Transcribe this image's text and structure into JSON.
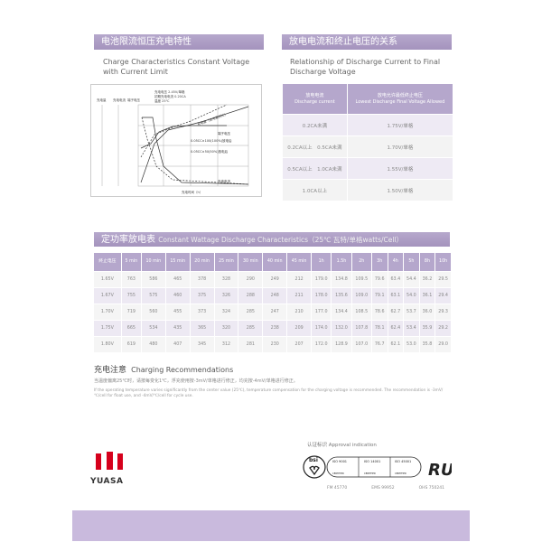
{
  "charge": {
    "title_cn": "电池限流恒压充电特性",
    "title_en": "Charge Characteristics Constant Voltage with Current Limit",
    "chart_labels": {
      "y_axes": [
        "充电量",
        "充电电流",
        "端子电压"
      ],
      "notes": [
        "充电电压 2.45V/单格",
        "初期充电电流 0.20CA",
        "温度 25℃"
      ],
      "curve_charge": "充电量（放电量的比）",
      "curve_voltage": "端子电压",
      "legend1": "0.05CC×100(100%)放电后",
      "legend2": "0.05CC×50(50%)放电后",
      "curve_current": "充电电流",
      "xlabel": "充电时间（h）"
    }
  },
  "relation": {
    "title_cn": "放电电流和终止电压的关系",
    "title_en": "Relationship of Discharge Current to Final Discharge Voltage",
    "headers": [
      {
        "cn": "放电电流",
        "en": "Discharge current"
      },
      {
        "cn": "放电允许最低终止电压",
        "en": "Lowest Discharge Final Voltage Allowed"
      }
    ],
    "rows": [
      [
        "0.2CA未满",
        "1.75V/单格"
      ],
      [
        "0.2CA以上　0.5CA未满",
        "1.70V/单格"
      ],
      [
        "0.5CA以上　1.0CA未满",
        "1.55V/单格"
      ],
      [
        "1.0CA以上",
        "1.50V/单格"
      ]
    ]
  },
  "wattage": {
    "title_cn": "定功率放电表",
    "title_en": "Constant Wattage Discharge Characteristics（25℃ 瓦特/单格watts/Cell）",
    "headers": [
      "终止电压",
      "5 min",
      "10 min",
      "15 min",
      "20 min",
      "25 min",
      "30 min",
      "40 min",
      "45 min",
      "1h",
      "1.5h",
      "2h",
      "3h",
      "4h",
      "5h",
      "8h",
      "10h"
    ],
    "rows": [
      [
        "1.65V",
        "763",
        "586",
        "465",
        "378",
        "328",
        "290",
        "249",
        "212",
        "179.0",
        "134.8",
        "109.5",
        "79.6",
        "63.4",
        "54.4",
        "36.2",
        "29.5"
      ],
      [
        "1.67V",
        "755",
        "575",
        "460",
        "375",
        "326",
        "288",
        "248",
        "211",
        "178.0",
        "135.6",
        "109.0",
        "79.1",
        "63.1",
        "54.0",
        "36.1",
        "29.4"
      ],
      [
        "1.70V",
        "719",
        "560",
        "455",
        "373",
        "324",
        "285",
        "247",
        "210",
        "177.0",
        "134.4",
        "108.5",
        "78.6",
        "62.7",
        "53.7",
        "36.0",
        "29.3"
      ],
      [
        "1.75V",
        "665",
        "534",
        "435",
        "365",
        "320",
        "285",
        "238",
        "209",
        "174.0",
        "132.0",
        "107.8",
        "78.1",
        "62.4",
        "53.4",
        "35.9",
        "29.2"
      ],
      [
        "1.80V",
        "619",
        "480",
        "407",
        "345",
        "312",
        "281",
        "230",
        "207",
        "172.0",
        "128.9",
        "107.0",
        "76.7",
        "62.1",
        "53.0",
        "35.8",
        "29.0"
      ]
    ]
  },
  "charging": {
    "title_cn": "充电注意",
    "title_en": "Charging Recommendations",
    "text_cn": "当温度偏离25℃时，请按每变化1℃，浮充使用按-3mV/单格进行修正，均充按-4mV/单格进行修正。",
    "text_en": "If the operating temperature varies significantly from the center value (25℃), temperature compensation for the charging voltage is recommended. The recommendation is -3mV/℃/cell for float use, and -4mV/℃/cell for cycle use."
  },
  "brand": {
    "logo_text": "YUASA",
    "color": "#d6001c"
  },
  "approval": {
    "title": "认证标识 Approval indication",
    "certs": [
      {
        "name": "ISO 9001",
        "desc": "Quality Management Systems",
        "code": "FM 45770"
      },
      {
        "name": "ISO 14001",
        "desc": "Environmental Management",
        "code": "EMS 99952"
      },
      {
        "name": "ISO 45001",
        "desc": "Occupational Health and Safety Management",
        "code": "OHS 750241"
      }
    ],
    "certified": "CERTIFIED"
  },
  "colors": {
    "accent": "#a898c0",
    "footer_band": "#c9badd"
  }
}
